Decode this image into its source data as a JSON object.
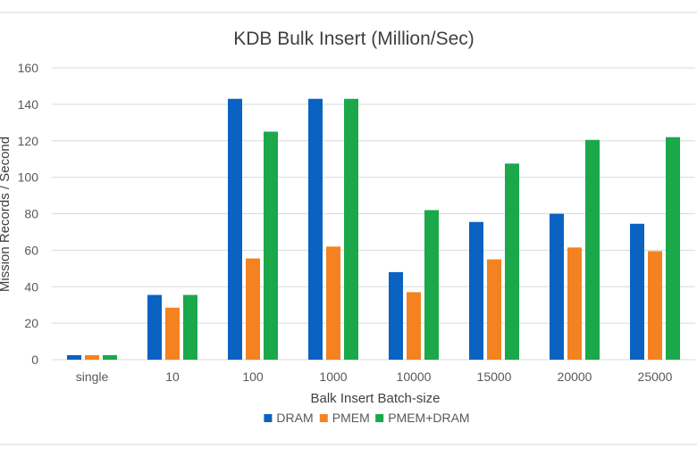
{
  "chart_data": {
    "type": "bar",
    "title": "KDB Bulk Insert (Million/Sec)",
    "xlabel": "Balk Insert Batch-size",
    "ylabel": "Mission Records / Second",
    "ylim": [
      0,
      160
    ],
    "yticks": [
      0,
      20,
      40,
      60,
      80,
      100,
      120,
      140,
      160
    ],
    "grid": true,
    "legend_position": "bottom",
    "categories": [
      "single",
      "10",
      "100",
      "1000",
      "10000",
      "15000",
      "20000",
      "25000"
    ],
    "series": [
      {
        "name": "DRAM",
        "color": "#0a62c2",
        "values": [
          2.5,
          35.5,
          143,
          143,
          48,
          75.5,
          80,
          74.5
        ]
      },
      {
        "name": "PMEM",
        "color": "#f58220",
        "values": [
          2.5,
          28.5,
          55.5,
          62,
          37,
          55,
          61.5,
          59.5
        ]
      },
      {
        "name": "PMEM+DRAM",
        "color": "#1aa84b",
        "values": [
          2.5,
          35.5,
          125,
          143,
          82,
          107.5,
          120.5,
          122
        ]
      }
    ]
  }
}
